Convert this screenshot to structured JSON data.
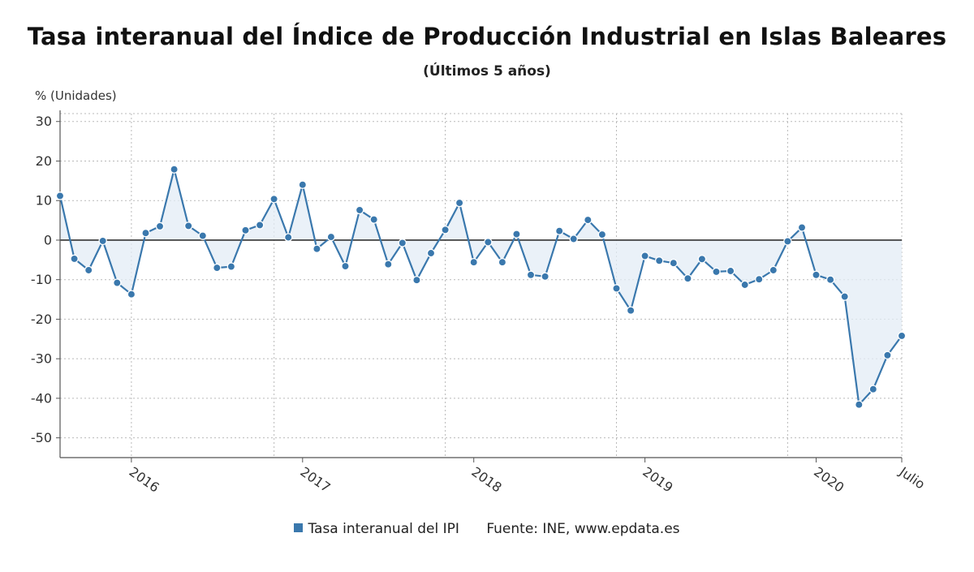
{
  "chart_data": {
    "type": "area",
    "title": "Tasa interanual del Índice de Producción Industrial en Islas Baleares",
    "subtitle": "(Últimos 5 años)",
    "ylabel": "% (Unidades)",
    "xlabel": "",
    "ylim": [
      -55,
      32
    ],
    "yticks": [
      30,
      20,
      10,
      0,
      -10,
      -20,
      -30,
      -40,
      -50
    ],
    "ytick_labels": [
      "30",
      "20",
      "10",
      "0",
      "-10",
      "-20",
      "-30",
      "-40",
      "-50"
    ],
    "xticks": [
      {
        "label": "2016",
        "index": 5
      },
      {
        "label": "2017",
        "index": 17
      },
      {
        "label": "2018",
        "index": 29
      },
      {
        "label": "2019",
        "index": 41
      },
      {
        "label": "2020",
        "index": 53
      },
      {
        "label": "Julio",
        "index": 59
      }
    ],
    "year_grid_indices": [
      5,
      15,
      27,
      39,
      51,
      59
    ],
    "grid": true,
    "legend_position": "bottom",
    "series": [
      {
        "name": "Tasa interanual del IPI",
        "color": "#3a78ad",
        "values": [
          11.2,
          -4.7,
          -7.6,
          -0.2,
          -10.8,
          -13.7,
          1.8,
          3.5,
          17.9,
          3.6,
          1.1,
          -7.0,
          -6.7,
          2.5,
          3.8,
          10.4,
          0.7,
          14.0,
          -2.2,
          0.8,
          -6.6,
          7.6,
          5.2,
          -6.1,
          -0.7,
          -10.1,
          -3.3,
          2.6,
          9.4,
          -5.6,
          -0.5,
          -5.6,
          1.5,
          -8.8,
          -9.2,
          2.3,
          0.3,
          5.1,
          1.4,
          -12.2,
          -17.8,
          -4.0,
          -5.2,
          -5.8,
          -9.7,
          -4.8,
          -8.0,
          -7.8,
          -11.3,
          -9.9,
          -7.6,
          -0.3,
          3.2,
          -8.8,
          -10.0,
          -14.3,
          -41.6,
          -37.7,
          -29.1,
          -24.2
        ]
      }
    ],
    "legend_entries": [
      "Tasa interanual del IPI"
    ],
    "source": "Fuente: INE, www.epdata.es"
  }
}
